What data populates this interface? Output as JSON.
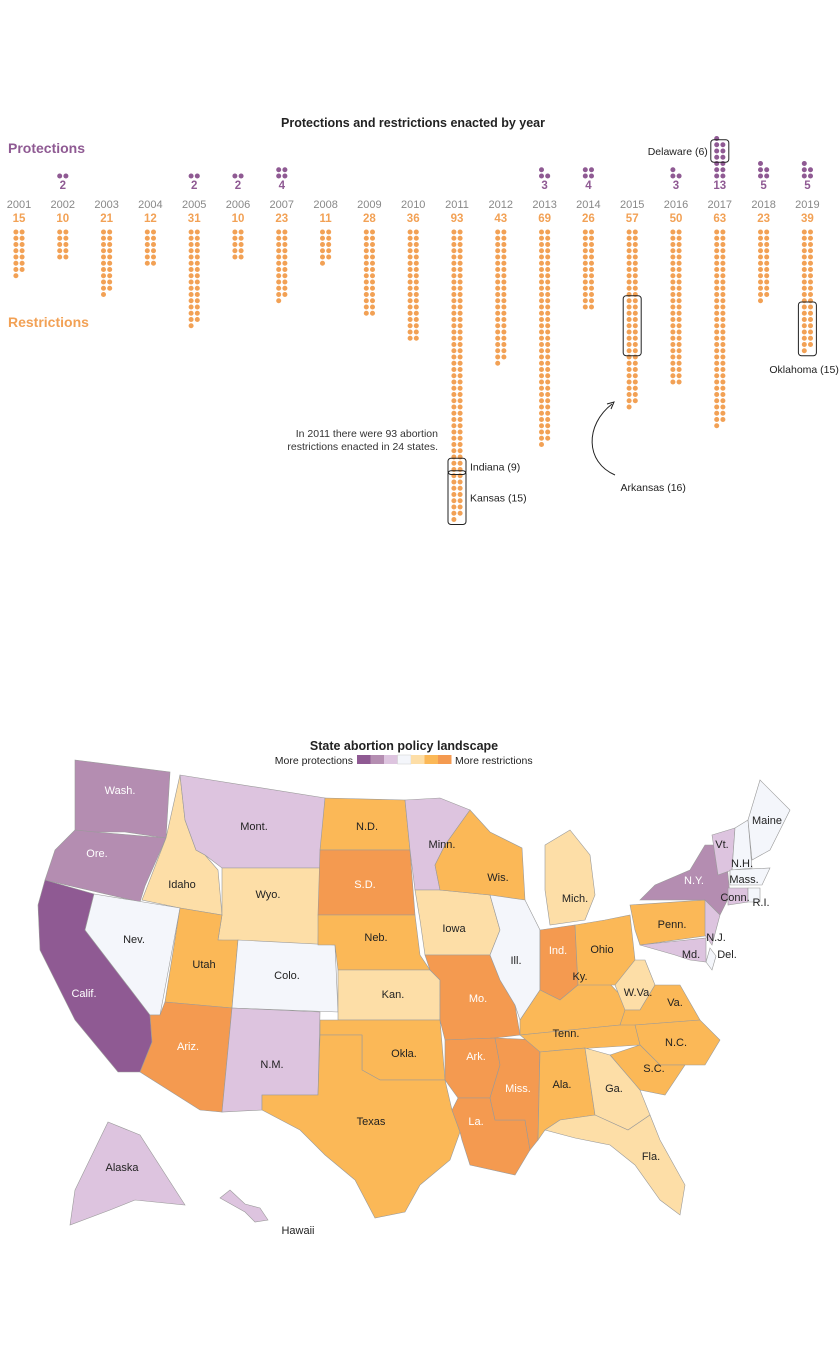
{
  "chart_data": [
    {
      "type": "dot_column",
      "title": "Protections and restrictions enacted by year",
      "series_labels": {
        "protections": "Protections",
        "restrictions": "Restrictions"
      },
      "colors": {
        "protections": "#8f5a93",
        "restrictions": "#f2a155",
        "year": "#888888",
        "highlight_box": "#222222"
      },
      "years": [
        "2001",
        "2002",
        "2003",
        "2004",
        "2005",
        "2006",
        "2007",
        "2008",
        "2009",
        "2010",
        "2011",
        "2012",
        "2013",
        "2014",
        "2015",
        "2016",
        "2017",
        "2018",
        "2019"
      ],
      "protections": [
        0,
        2,
        0,
        0,
        2,
        2,
        4,
        0,
        0,
        0,
        0,
        0,
        3,
        4,
        0,
        3,
        13,
        5,
        5
      ],
      "restrictions": [
        15,
        10,
        21,
        12,
        31,
        10,
        23,
        11,
        28,
        36,
        93,
        43,
        69,
        26,
        57,
        50,
        63,
        23,
        39
      ],
      "highlights": [
        {
          "series": "protections",
          "year": "2017",
          "label": "Delaware (6)"
        },
        {
          "series": "restrictions",
          "year": "2011",
          "label": "Indiana (9)"
        },
        {
          "series": "restrictions",
          "year": "2011",
          "label": "Kansas (15)"
        },
        {
          "series": "restrictions",
          "year": "2015",
          "label": "Arkansas (16)"
        },
        {
          "series": "restrictions",
          "year": "2019",
          "label": "Oklahoma (15)"
        }
      ],
      "annotations": [
        "In 2011 there were 93 abortion",
        "restrictions enacted in 24 states."
      ]
    },
    {
      "type": "choropleth",
      "title": "State abortion policy landscape",
      "legend": {
        "left_label": "More protections",
        "right_label": "More restrictions",
        "scale": [
          "#8f5a93",
          "#b48db1",
          "#ddc4df",
          "#f4f6fb",
          "#fddea7",
          "#fbb857",
          "#f49a50"
        ]
      },
      "states": [
        {
          "name": "Wash.",
          "level": 1
        },
        {
          "name": "Ore.",
          "level": 1
        },
        {
          "name": "Calif.",
          "level": 0
        },
        {
          "name": "Idaho",
          "level": 4
        },
        {
          "name": "Nev.",
          "level": 3
        },
        {
          "name": "Mont.",
          "level": 2
        },
        {
          "name": "Wyo.",
          "level": 4
        },
        {
          "name": "Utah",
          "level": 5
        },
        {
          "name": "Colo.",
          "level": 3
        },
        {
          "name": "Ariz.",
          "level": 6
        },
        {
          "name": "N.M.",
          "level": 2
        },
        {
          "name": "N.D.",
          "level": 5
        },
        {
          "name": "S.D.",
          "level": 6
        },
        {
          "name": "Neb.",
          "level": 5
        },
        {
          "name": "Kan.",
          "level": 4
        },
        {
          "name": "Okla.",
          "level": 5
        },
        {
          "name": "Texas",
          "level": 5
        },
        {
          "name": "Minn.",
          "level": 2
        },
        {
          "name": "Iowa",
          "level": 4
        },
        {
          "name": "Mo.",
          "level": 6
        },
        {
          "name": "Ark.",
          "level": 6
        },
        {
          "name": "La.",
          "level": 6
        },
        {
          "name": "Wis.",
          "level": 5
        },
        {
          "name": "Ill.",
          "level": 3
        },
        {
          "name": "Miss.",
          "level": 6
        },
        {
          "name": "Mich.",
          "level": 4
        },
        {
          "name": "Ind.",
          "level": 6
        },
        {
          "name": "Ky.",
          "level": 5
        },
        {
          "name": "Tenn.",
          "level": 5
        },
        {
          "name": "Ala.",
          "level": 5
        },
        {
          "name": "Ohio",
          "level": 5
        },
        {
          "name": "W.Va.",
          "level": 4
        },
        {
          "name": "Va.",
          "level": 5
        },
        {
          "name": "N.C.",
          "level": 5
        },
        {
          "name": "S.C.",
          "level": 5
        },
        {
          "name": "Ga.",
          "level": 4
        },
        {
          "name": "Fla.",
          "level": 4
        },
        {
          "name": "Penn.",
          "level": 5
        },
        {
          "name": "N.Y.",
          "level": 1
        },
        {
          "name": "N.J.",
          "level": 2
        },
        {
          "name": "Del.",
          "level": 3
        },
        {
          "name": "Md.",
          "level": 2
        },
        {
          "name": "Vt.",
          "level": 2
        },
        {
          "name": "N.H.",
          "level": 3
        },
        {
          "name": "Maine",
          "level": 3
        },
        {
          "name": "Mass.",
          "level": 3
        },
        {
          "name": "Conn.",
          "level": 2
        },
        {
          "name": "R.I.",
          "level": 3
        },
        {
          "name": "Alaska",
          "level": 2
        },
        {
          "name": "Hawaii",
          "level": 2
        }
      ]
    }
  ]
}
